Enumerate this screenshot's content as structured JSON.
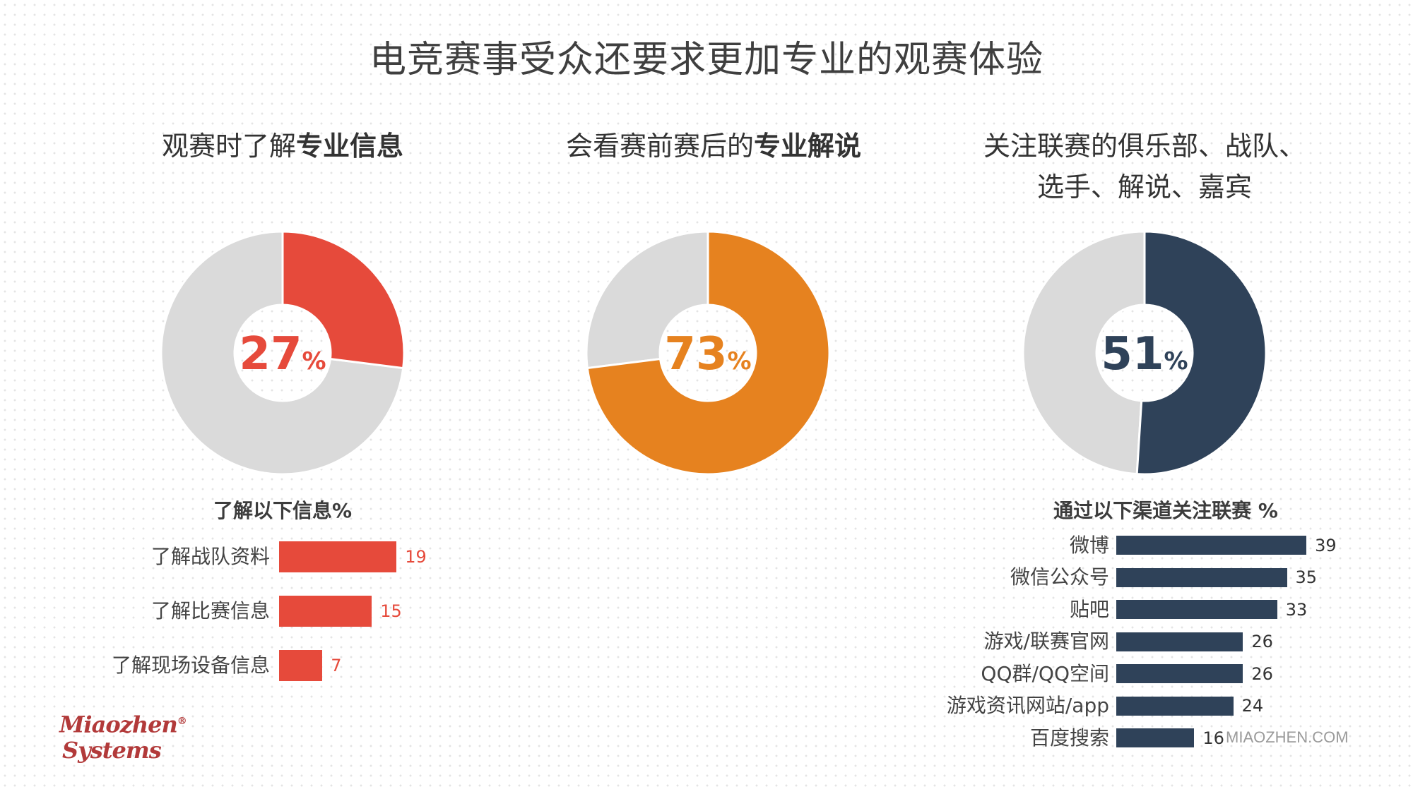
{
  "title": "电竞赛事受众还要求更加专业的观赛体验",
  "colors": {
    "red": "#e64a3b",
    "orange": "#e6821f",
    "navy": "#2f4259",
    "gray": "#dadada"
  },
  "panels": [
    {
      "title_plain": "观赛时了解",
      "title_bold": "专业信息",
      "percent": "27",
      "percent_sign": "%"
    },
    {
      "title_plain": "会看赛前赛后的",
      "title_bold": "专业解说",
      "percent": "73",
      "percent_sign": "%"
    },
    {
      "title_line1": "关注联赛的俱乐部、战队、",
      "title_line2": "选手、解说、嘉宾",
      "percent": "51",
      "percent_sign": "%"
    }
  ],
  "chart_data": [
    {
      "type": "pie",
      "subtype": "donut",
      "values": [
        27,
        73
      ],
      "labels": [
        "观赛时了解专业信息",
        ""
      ],
      "colors": [
        "#e64a3b",
        "#dadada"
      ]
    },
    {
      "type": "pie",
      "subtype": "donut",
      "values": [
        73,
        27
      ],
      "labels": [
        "会看赛前赛后的专业解说",
        ""
      ],
      "colors": [
        "#e6821f",
        "#dadada"
      ]
    },
    {
      "type": "pie",
      "subtype": "donut",
      "values": [
        51,
        49
      ],
      "labels": [
        "关注联赛的俱乐部、战队、选手、解说、嘉宾",
        ""
      ],
      "colors": [
        "#2f4259",
        "#dadada"
      ]
    },
    {
      "type": "bar",
      "orientation": "horizontal",
      "title": "了解以下信息%",
      "categories": [
        "了解战队资料",
        "了解比赛信息",
        "了解现场设备信息"
      ],
      "values": [
        19,
        15,
        7
      ],
      "color": "#e64a3b"
    },
    {
      "type": "bar",
      "orientation": "horizontal",
      "title": "通过以下渠道关注联赛 %",
      "categories": [
        "微博",
        "微信公众号",
        "贴吧",
        "游戏/联赛官网",
        "QQ群/QQ空间",
        "游戏资讯网站/app",
        "百度搜索"
      ],
      "values": [
        39,
        35,
        33,
        26,
        26,
        24,
        16
      ],
      "color": "#2f4259"
    }
  ],
  "logo": {
    "line1": "Miaozhen",
    "line2": "Systems",
    "mark": "®"
  },
  "watermark": "MIAOZHEN.COM"
}
